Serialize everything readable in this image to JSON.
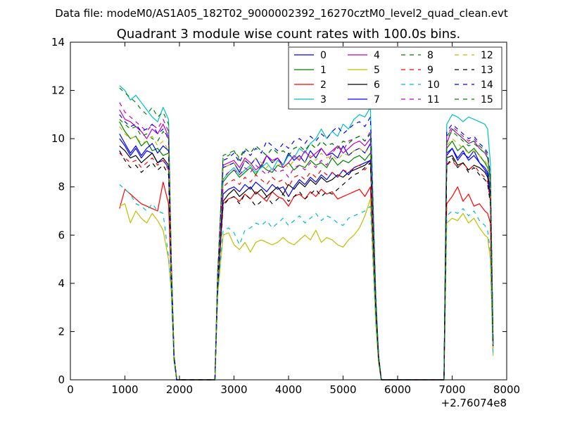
{
  "chart_data": {
    "type": "line",
    "suptitle": "Data file: modeM0/AS1A05_182T02_9000002392_16270cztM0_level2_quad_clean.evt",
    "title": "Quadrant 3 module wise count rates with 100.0s bins.",
    "xlabel": "",
    "ylabel": "",
    "x_offset_label": "+2.76074e8",
    "xlim": [
      0,
      8000
    ],
    "ylim": [
      0,
      14
    ],
    "xticks": [
      0,
      1000,
      2000,
      3000,
      4000,
      5000,
      6000,
      7000,
      8000
    ],
    "yticks": [
      0,
      2,
      4,
      6,
      8,
      10,
      12,
      14
    ],
    "grid": false,
    "legend_position": "top-right",
    "legend_columns": 4,
    "segments": [
      [
        900,
        1950
      ],
      [
        2650,
        5750
      ],
      [
        6850,
        7750
      ]
    ],
    "x": [
      900,
      1000,
      1100,
      1200,
      1300,
      1400,
      1500,
      1600,
      1700,
      1800,
      1850,
      1900,
      1950,
      2650,
      2700,
      2800,
      2900,
      3000,
      3100,
      3200,
      3300,
      3400,
      3500,
      3600,
      3700,
      3800,
      3900,
      4000,
      4100,
      4200,
      4300,
      4400,
      4500,
      4600,
      4700,
      4800,
      4900,
      5000,
      5100,
      5200,
      5300,
      5400,
      5500,
      5600,
      5650,
      5700,
      5750,
      6850,
      6900,
      7000,
      7100,
      7200,
      7300,
      7400,
      7500,
      7600,
      7650,
      7700,
      7750
    ],
    "series": [
      {
        "name": "0",
        "color": "#0000ff",
        "dash": false,
        "values": [
          10.0,
          9.7,
          9.3,
          9.6,
          9.2,
          9.5,
          9.4,
          9.0,
          9.1,
          8.8,
          4.5,
          1.0,
          0,
          0,
          4.0,
          8.8,
          8.9,
          9.0,
          8.6,
          9.1,
          8.9,
          9.2,
          8.8,
          9.3,
          9.0,
          9.2,
          8.9,
          9.4,
          9.1,
          9.3,
          9.0,
          9.5,
          9.2,
          9.6,
          9.3,
          9.4,
          9.2,
          9.7,
          9.3,
          9.5,
          9.6,
          9.4,
          9.8,
          3.0,
          1.0,
          0,
          0,
          0,
          9.3,
          9.6,
          9.1,
          9.4,
          9.2,
          9.5,
          9.0,
          8.7,
          8.5,
          7.5,
          1.5
        ]
      },
      {
        "name": "1",
        "color": "#008000",
        "dash": false,
        "values": [
          10.7,
          10.3,
          10.0,
          10.1,
          9.7,
          9.9,
          9.5,
          9.6,
          9.3,
          9.4,
          4.6,
          1.0,
          0,
          0,
          4.1,
          8.2,
          8.5,
          8.7,
          8.4,
          8.6,
          8.8,
          8.5,
          8.9,
          8.7,
          8.6,
          8.9,
          8.8,
          9.0,
          8.7,
          8.9,
          8.8,
          9.1,
          8.9,
          9.0,
          8.8,
          9.2,
          8.9,
          9.1,
          9.0,
          9.2,
          9.3,
          9.1,
          9.4,
          3.0,
          1.0,
          0,
          0,
          0,
          9.6,
          9.9,
          9.5,
          9.7,
          9.4,
          9.6,
          9.3,
          9.0,
          8.8,
          8.0,
          1.5
        ]
      },
      {
        "name": "2",
        "color": "#ff0000",
        "dash": false,
        "values": [
          7.1,
          7.9,
          7.7,
          7.5,
          7.3,
          7.2,
          7.1,
          7.0,
          8.2,
          7.3,
          4.0,
          0.8,
          0,
          0,
          3.8,
          7.3,
          7.5,
          7.6,
          7.4,
          7.7,
          7.5,
          7.8,
          7.6,
          7.4,
          7.8,
          7.6,
          7.5,
          7.2,
          7.6,
          7.7,
          7.5,
          7.8,
          7.6,
          7.9,
          7.7,
          7.8,
          7.5,
          7.6,
          7.7,
          7.8,
          7.9,
          7.6,
          8.0,
          2.5,
          0.8,
          0,
          0,
          0,
          7.3,
          7.6,
          8.0,
          7.4,
          7.7,
          7.2,
          7.3,
          7.0,
          6.9,
          6.5,
          1.3
        ]
      },
      {
        "name": "3",
        "color": "#00bfbf",
        "dash": false,
        "values": [
          12.2,
          12.0,
          11.6,
          11.8,
          11.5,
          11.2,
          10.9,
          10.7,
          11.3,
          10.8,
          5.0,
          1.0,
          0,
          0,
          4.5,
          8.3,
          8.6,
          8.8,
          8.5,
          8.7,
          8.9,
          8.6,
          8.8,
          9.0,
          8.7,
          9.1,
          8.9,
          9.3,
          9.2,
          9.6,
          9.4,
          9.8,
          10.0,
          10.4,
          10.0,
          10.3,
          10.1,
          10.6,
          10.4,
          10.8,
          11.0,
          10.9,
          11.3,
          3.5,
          1.0,
          0,
          0,
          0,
          10.6,
          11.0,
          10.9,
          10.7,
          10.9,
          10.8,
          10.7,
          10.6,
          10.4,
          9.0,
          1.8
        ]
      },
      {
        "name": "4",
        "color": "#bf00bf",
        "dash": false,
        "values": [
          11.2,
          10.8,
          10.7,
          10.5,
          10.3,
          10.0,
          10.4,
          10.2,
          10.6,
          10.1,
          4.8,
          1.0,
          0,
          0,
          4.3,
          8.9,
          9.0,
          9.1,
          8.8,
          9.2,
          9.0,
          8.7,
          8.9,
          9.3,
          9.1,
          9.2,
          8.8,
          9.0,
          9.3,
          9.1,
          9.5,
          9.2,
          9.4,
          9.6,
          9.3,
          9.5,
          9.7,
          9.4,
          9.6,
          9.8,
          9.9,
          9.7,
          10.0,
          3.2,
          1.0,
          0,
          0,
          0,
          9.8,
          10.4,
          10.2,
          10.0,
          9.8,
          9.9,
          9.6,
          9.4,
          9.2,
          8.3,
          1.6
        ]
      },
      {
        "name": "5",
        "color": "#bfbf00",
        "dash": false,
        "values": [
          7.2,
          7.3,
          6.5,
          7.0,
          6.7,
          6.5,
          6.9,
          6.6,
          6.2,
          5.0,
          3.6,
          0.8,
          0,
          0,
          3.5,
          6.0,
          6.1,
          5.6,
          5.4,
          5.7,
          5.3,
          5.7,
          5.8,
          5.7,
          5.6,
          5.7,
          5.9,
          5.7,
          5.6,
          5.8,
          6.0,
          5.8,
          6.2,
          5.7,
          5.9,
          5.8,
          5.6,
          5.5,
          5.8,
          6.0,
          6.3,
          6.8,
          7.5,
          2.3,
          0.7,
          0,
          0,
          0,
          6.5,
          6.7,
          6.6,
          6.9,
          6.5,
          6.7,
          6.3,
          6.0,
          5.9,
          5.0,
          1.0
        ]
      },
      {
        "name": "6",
        "color": "#000000",
        "dash": false,
        "values": [
          9.7,
          9.5,
          9.2,
          9.3,
          9.0,
          9.2,
          9.4,
          9.0,
          9.2,
          8.9,
          4.4,
          0.9,
          0,
          0,
          3.9,
          7.4,
          7.7,
          7.9,
          7.6,
          7.8,
          8.0,
          7.7,
          7.9,
          7.6,
          7.8,
          8.0,
          7.7,
          8.1,
          7.9,
          8.2,
          8.0,
          8.3,
          8.1,
          8.4,
          8.2,
          8.3,
          8.5,
          8.4,
          8.6,
          8.7,
          8.8,
          8.9,
          9.1,
          3.0,
          0.9,
          0,
          0,
          0,
          9.2,
          9.3,
          8.9,
          9.0,
          8.7,
          8.9,
          8.8,
          8.6,
          8.4,
          7.6,
          1.4
        ]
      },
      {
        "name": "7",
        "color": "#0000ff",
        "dash": false,
        "values": [
          10.2,
          9.8,
          9.4,
          9.7,
          9.3,
          9.6,
          9.8,
          9.4,
          9.7,
          9.5,
          4.5,
          0.9,
          0,
          0,
          4.0,
          7.7,
          7.9,
          8.0,
          7.8,
          8.1,
          7.9,
          8.2,
          8.0,
          7.8,
          8.1,
          7.9,
          8.0,
          7.6,
          8.0,
          8.3,
          8.1,
          8.4,
          8.2,
          8.5,
          8.3,
          8.6,
          8.4,
          8.7,
          8.5,
          8.8,
          8.9,
          9.0,
          9.1,
          3.1,
          0.9,
          0,
          0,
          0,
          9.4,
          9.6,
          9.2,
          9.5,
          9.1,
          9.3,
          9.0,
          8.8,
          8.6,
          7.7,
          1.5
        ]
      },
      {
        "name": "8",
        "color": "#008000",
        "dash": true,
        "values": [
          10.8,
          10.6,
          10.4,
          10.5,
          10.1,
          10.2,
          10.0,
          9.9,
          10.3,
          10.0,
          4.7,
          1.0,
          0,
          0,
          4.2,
          9.3,
          9.4,
          9.5,
          9.2,
          9.6,
          9.4,
          9.7,
          9.5,
          9.3,
          9.6,
          9.4,
          9.5,
          9.3,
          9.6,
          9.7,
          9.5,
          9.8,
          9.6,
          9.9,
          9.7,
          9.8,
          9.6,
          9.9,
          9.8,
          10.0,
          10.1,
          9.9,
          10.2,
          3.3,
          1.0,
          0,
          0,
          0,
          10.0,
          10.3,
          10.1,
          9.9,
          9.7,
          9.8,
          9.6,
          9.4,
          9.2,
          8.3,
          1.6
        ]
      },
      {
        "name": "9",
        "color": "#ff0000",
        "dash": true,
        "values": [
          9.4,
          9.2,
          9.0,
          9.1,
          8.8,
          9.0,
          9.2,
          8.9,
          9.1,
          8.7,
          4.3,
          0.9,
          0,
          0,
          3.8,
          8.0,
          8.2,
          8.3,
          8.1,
          8.4,
          8.2,
          8.5,
          8.3,
          8.1,
          8.4,
          8.2,
          8.3,
          8.0,
          8.4,
          8.5,
          8.3,
          8.6,
          8.4,
          8.7,
          8.5,
          8.6,
          8.4,
          8.7,
          8.6,
          8.8,
          8.9,
          8.7,
          9.0,
          2.9,
          0.9,
          0,
          0,
          0,
          8.9,
          9.1,
          8.8,
          9.0,
          8.7,
          8.9,
          8.6,
          8.4,
          8.2,
          7.4,
          1.4
        ]
      },
      {
        "name": "10",
        "color": "#00bfbf",
        "dash": true,
        "values": [
          8.1,
          7.9,
          7.7,
          7.3,
          7.2,
          7.0,
          7.3,
          7.0,
          6.9,
          5.1,
          3.7,
          0.8,
          0,
          0,
          3.6,
          6.2,
          6.3,
          6.1,
          5.6,
          6.2,
          6.3,
          6.5,
          6.4,
          6.6,
          6.3,
          6.5,
          6.7,
          6.4,
          6.6,
          6.8,
          6.5,
          6.7,
          6.9,
          6.6,
          6.8,
          6.7,
          6.5,
          6.4,
          6.7,
          6.8,
          6.9,
          7.0,
          7.2,
          2.4,
          0.8,
          0,
          0,
          0,
          6.8,
          7.0,
          6.9,
          7.1,
          6.8,
          7.0,
          6.6,
          6.4,
          6.2,
          5.3,
          1.1
        ]
      },
      {
        "name": "11",
        "color": "#bf00bf",
        "dash": true,
        "values": [
          11.5,
          11.1,
          10.9,
          10.7,
          10.5,
          10.3,
          10.6,
          10.4,
          10.8,
          10.3,
          4.9,
          1.0,
          0,
          0,
          4.4,
          8.4,
          8.6,
          8.7,
          8.5,
          8.8,
          8.6,
          8.9,
          8.7,
          8.5,
          8.8,
          8.6,
          8.7,
          8.4,
          8.8,
          8.9,
          8.7,
          9.0,
          8.8,
          9.1,
          8.9,
          9.4,
          9.7,
          9.5,
          9.9,
          10.0,
          10.1,
          9.9,
          10.3,
          3.3,
          1.0,
          0,
          0,
          0,
          10.1,
          10.5,
          10.3,
          10.1,
          9.9,
          10.0,
          9.7,
          9.5,
          9.3,
          8.4,
          1.7
        ]
      },
      {
        "name": "12",
        "color": "#bfbf00",
        "dash": true,
        "values": [
          10.5,
          10.2,
          10.0,
          10.1,
          9.8,
          9.9,
          10.1,
          9.7,
          9.9,
          9.5,
          4.6,
          1.0,
          0,
          0,
          4.1,
          8.8,
          8.9,
          9.0,
          8.7,
          9.1,
          8.9,
          9.2,
          9.0,
          8.8,
          9.1,
          8.9,
          9.0,
          8.8,
          9.1,
          9.2,
          9.0,
          9.3,
          9.1,
          9.4,
          9.2,
          9.3,
          9.1,
          9.4,
          9.3,
          9.5,
          9.6,
          9.4,
          9.7,
          3.1,
          1.0,
          0,
          0,
          0,
          9.7,
          10.0,
          9.8,
          9.6,
          9.4,
          9.5,
          9.3,
          9.1,
          8.9,
          8.0,
          1.6
        ]
      },
      {
        "name": "13",
        "color": "#000000",
        "dash": true,
        "values": [
          9.5,
          9.1,
          8.8,
          8.9,
          8.6,
          8.8,
          9.0,
          8.7,
          8.9,
          8.5,
          4.2,
          0.9,
          0,
          0,
          3.8,
          7.2,
          7.5,
          7.6,
          7.3,
          7.7,
          7.5,
          7.2,
          7.4,
          7.6,
          7.3,
          7.5,
          7.7,
          7.4,
          7.6,
          7.8,
          7.5,
          7.7,
          7.9,
          7.6,
          7.8,
          7.7,
          7.9,
          8.1,
          8.3,
          8.5,
          8.6,
          8.8,
          9.0,
          3.0,
          0.9,
          0,
          0,
          0,
          8.9,
          9.2,
          8.8,
          9.0,
          8.6,
          8.8,
          8.5,
          8.3,
          8.1,
          7.3,
          1.4
        ]
      },
      {
        "name": "14",
        "color": "#0000ff",
        "dash": true,
        "values": [
          11.0,
          10.7,
          10.5,
          10.6,
          10.3,
          10.4,
          10.6,
          10.2,
          10.4,
          10.0,
          4.8,
          1.0,
          0,
          0,
          4.3,
          9.1,
          9.2,
          9.4,
          9.0,
          9.5,
          9.3,
          9.6,
          9.4,
          9.9,
          9.7,
          9.5,
          9.8,
          9.6,
          9.9,
          10.0,
          9.8,
          10.1,
          9.9,
          10.2,
          10.0,
          10.3,
          10.5,
          10.2,
          10.4,
          10.6,
          10.7,
          10.5,
          10.9,
          3.4,
          1.0,
          0,
          0,
          0,
          10.3,
          10.6,
          10.4,
          10.2,
          10.0,
          10.1,
          9.8,
          9.6,
          9.4,
          8.5,
          1.7
        ]
      },
      {
        "name": "15",
        "color": "#008000",
        "dash": true,
        "values": [
          12.1,
          11.9,
          11.7,
          11.5,
          11.2,
          11.0,
          11.3,
          10.9,
          11.1,
          10.6,
          5.0,
          1.0,
          0,
          0,
          4.5,
          9.2,
          9.3,
          9.5,
          9.1,
          9.6,
          9.4,
          9.7,
          9.5,
          9.3,
          9.6,
          9.4,
          9.5,
          9.3,
          9.6,
          9.7,
          9.5,
          9.8,
          9.6,
          9.9,
          9.7,
          9.8,
          9.6,
          9.9,
          9.8,
          10.0,
          10.1,
          9.9,
          10.2,
          3.4,
          1.0,
          0,
          0,
          0,
          10.1,
          10.4,
          10.2,
          10.0,
          9.8,
          9.9,
          9.7,
          9.5,
          9.3,
          8.4,
          1.7
        ]
      }
    ]
  }
}
